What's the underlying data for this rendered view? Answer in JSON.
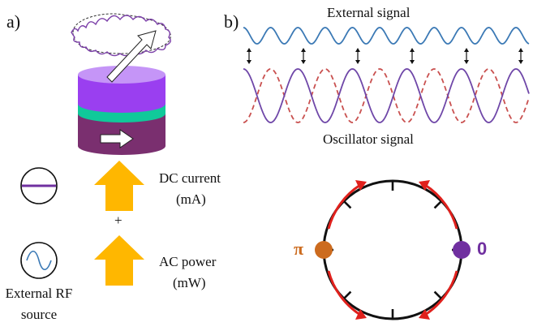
{
  "panel_a": {
    "letter": "a)",
    "dc_label_line1": "DC current",
    "dc_label_line2": "(mA)",
    "plus": "+",
    "ac_label_line1": "AC power",
    "ac_label_line2": "(mW)",
    "source_line1": "External RF",
    "source_line2": "source"
  },
  "panel_b": {
    "letter": "b)",
    "external_signal": "External signal",
    "oscillator_signal": "Oscillator signal",
    "phase_pi": "π",
    "phase_zero": "0"
  },
  "colors": {
    "external_wave": "#3b79b5",
    "oscillator_wave": "#6f47a8",
    "anti_phase_wave": "#c9504f",
    "layer_top": "#9a3ff0",
    "layer_top_lid": "#c595f7",
    "layer_spacer": "#10c99a",
    "layer_bottom": "#7a2f6f",
    "arrow_orange": "#ffb700",
    "curved_arrows": "#e0201c",
    "pi_dot": "#cc6b1e",
    "zero_dot": "#7030a0"
  }
}
